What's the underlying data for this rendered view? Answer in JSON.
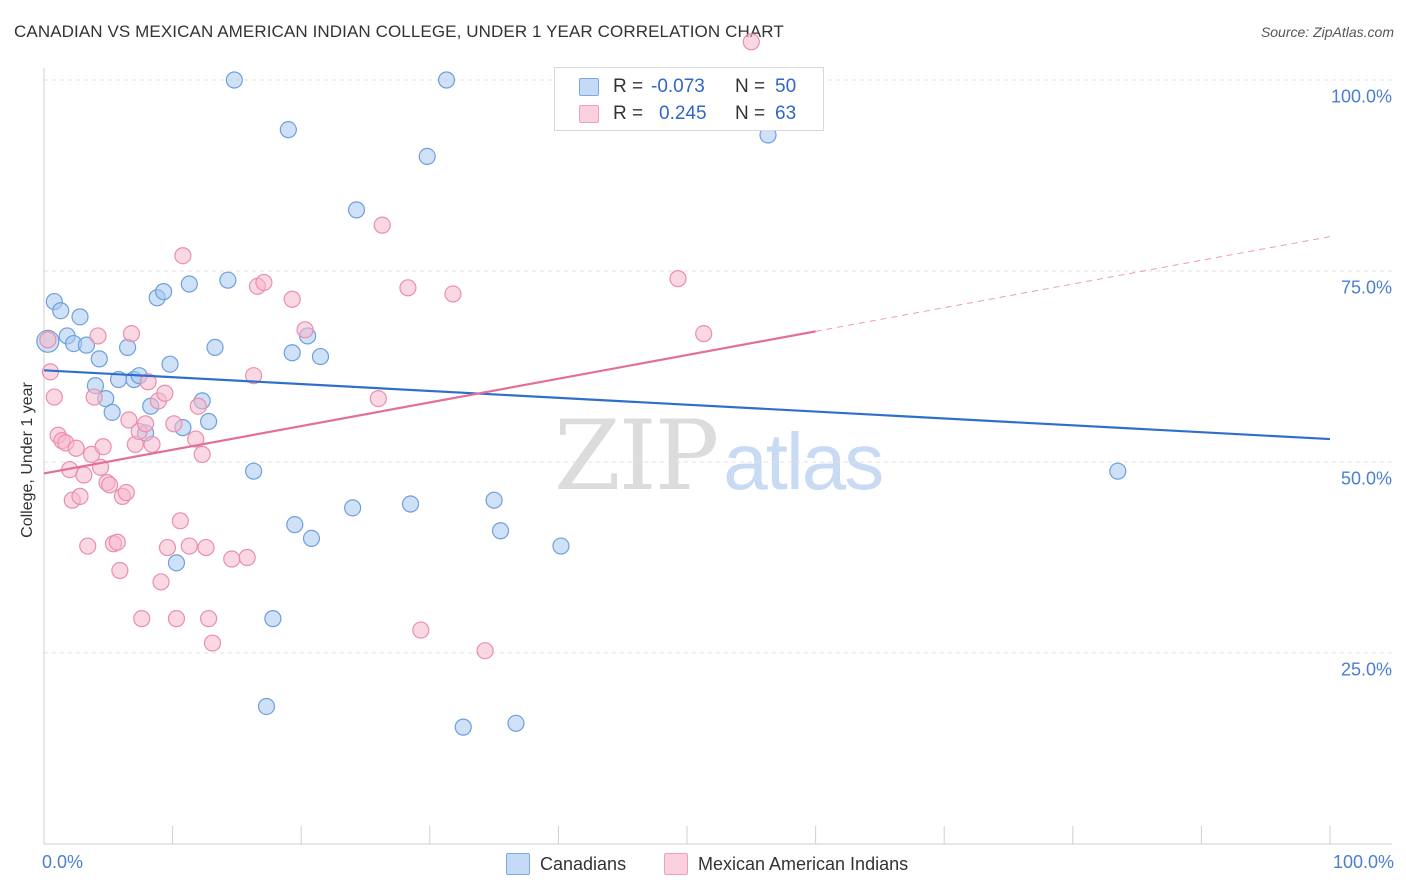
{
  "header": {
    "title": "CANADIAN VS MEXICAN AMERICAN INDIAN COLLEGE, UNDER 1 YEAR CORRELATION CHART",
    "source": "Source: ZipAtlas.com"
  },
  "watermark": {
    "zip": "ZIP",
    "atlas": "atlas"
  },
  "stats": {
    "rows": [
      {
        "r_label": "R =",
        "r_value": "-0.073",
        "n_label": "N =",
        "n_value": "50",
        "color": "#a8c8f0"
      },
      {
        "r_label": "R =",
        "r_value": "0.245",
        "n_label": "N =",
        "n_value": "63",
        "color": "#f5b8cc"
      }
    ]
  },
  "legend": {
    "items": [
      {
        "label": "Canadians",
        "color": "#a8c8f0"
      },
      {
        "label": "Mexican American Indians",
        "color": "#f5b8cc"
      }
    ]
  },
  "chart_data": {
    "type": "scatter",
    "title": "CANADIAN VS MEXICAN AMERICAN INDIAN COLLEGE, UNDER 1 YEAR CORRELATION CHART",
    "xlabel": "",
    "ylabel": "College, Under 1 year",
    "xlim": [
      0,
      100
    ],
    "ylim": [
      0,
      100
    ],
    "x_tick_labels": [
      "0.0%",
      "100.0%"
    ],
    "y_ticks": [
      25,
      50,
      75,
      100
    ],
    "y_tick_labels": [
      "25.0%",
      "50.0%",
      "75.0%",
      "100.0%"
    ],
    "grid": true,
    "legend_position": "bottom",
    "series": [
      {
        "name": "Canadians",
        "color": "#a8c8f0",
        "edge_color": "#6f9fdc",
        "trend_color": "#2f6fcc",
        "trend": {
          "x0": 0,
          "y0": 62.0,
          "x1": 100,
          "y1": 53.0,
          "dashed_from": null
        },
        "points": [
          [
            0.3,
            65.8
          ],
          [
            0.8,
            71.0
          ],
          [
            1.3,
            69.8
          ],
          [
            1.8,
            66.5
          ],
          [
            2.3,
            65.5
          ],
          [
            2.8,
            69.0
          ],
          [
            3.3,
            65.3
          ],
          [
            4.0,
            60.0
          ],
          [
            4.3,
            63.5
          ],
          [
            4.8,
            58.3
          ],
          [
            5.3,
            56.5
          ],
          [
            5.8,
            60.8
          ],
          [
            6.5,
            65.0
          ],
          [
            7.0,
            60.8
          ],
          [
            7.4,
            61.3
          ],
          [
            7.9,
            53.8
          ],
          [
            8.3,
            57.3
          ],
          [
            8.8,
            71.5
          ],
          [
            9.3,
            72.3
          ],
          [
            9.8,
            62.8
          ],
          [
            10.3,
            36.8
          ],
          [
            10.8,
            54.5
          ],
          [
            11.3,
            73.3
          ],
          [
            12.3,
            58.0
          ],
          [
            12.8,
            55.3
          ],
          [
            13.3,
            65.0
          ],
          [
            14.3,
            73.8
          ],
          [
            14.8,
            100.0
          ],
          [
            16.3,
            48.8
          ],
          [
            17.3,
            18.0
          ],
          [
            17.8,
            29.5
          ],
          [
            19.0,
            93.5
          ],
          [
            19.3,
            64.3
          ],
          [
            19.5,
            41.8
          ],
          [
            20.5,
            66.5
          ],
          [
            20.8,
            40.0
          ],
          [
            21.5,
            63.8
          ],
          [
            24.0,
            44.0
          ],
          [
            24.3,
            83.0
          ],
          [
            28.5,
            44.5
          ],
          [
            29.8,
            90.0
          ],
          [
            31.3,
            100.0
          ],
          [
            32.6,
            15.3
          ],
          [
            35.0,
            45.0
          ],
          [
            35.5,
            41.0
          ],
          [
            36.7,
            15.8
          ],
          [
            40.2,
            39.0
          ],
          [
            47.8,
            100.0
          ],
          [
            56.3,
            92.8
          ],
          [
            83.5,
            48.8
          ]
        ]
      },
      {
        "name": "Mexican American Indians",
        "color": "#f5b8cc",
        "edge_color": "#e98fae",
        "trend_color": "#e26f97",
        "trend": {
          "x0": 0,
          "y0": 48.5,
          "x1": 100,
          "y1": 79.5,
          "dashed_from": 60
        },
        "points": [
          [
            0.3,
            66.0
          ],
          [
            0.5,
            61.8
          ],
          [
            0.8,
            58.5
          ],
          [
            1.1,
            53.5
          ],
          [
            1.4,
            52.8
          ],
          [
            1.7,
            52.5
          ],
          [
            2.0,
            49.0
          ],
          [
            2.2,
            45.0
          ],
          [
            2.5,
            51.8
          ],
          [
            2.8,
            45.5
          ],
          [
            3.1,
            48.3
          ],
          [
            3.4,
            39.0
          ],
          [
            3.7,
            51.0
          ],
          [
            3.9,
            58.5
          ],
          [
            4.2,
            66.5
          ],
          [
            4.4,
            49.3
          ],
          [
            4.6,
            52.0
          ],
          [
            4.9,
            47.3
          ],
          [
            5.1,
            47.0
          ],
          [
            5.4,
            39.3
          ],
          [
            5.7,
            39.5
          ],
          [
            5.9,
            35.8
          ],
          [
            6.1,
            45.5
          ],
          [
            6.4,
            46.0
          ],
          [
            6.6,
            55.5
          ],
          [
            6.8,
            66.8
          ],
          [
            7.1,
            52.3
          ],
          [
            7.4,
            54.0
          ],
          [
            7.6,
            29.5
          ],
          [
            7.9,
            55.0
          ],
          [
            8.1,
            60.5
          ],
          [
            8.4,
            52.3
          ],
          [
            8.9,
            58.0
          ],
          [
            9.1,
            34.3
          ],
          [
            9.4,
            59.0
          ],
          [
            9.6,
            38.8
          ],
          [
            10.1,
            55.0
          ],
          [
            10.3,
            29.5
          ],
          [
            10.6,
            42.3
          ],
          [
            10.8,
            77.0
          ],
          [
            11.3,
            39.0
          ],
          [
            11.8,
            53.0
          ],
          [
            12.0,
            57.3
          ],
          [
            12.3,
            51.0
          ],
          [
            12.6,
            38.8
          ],
          [
            12.8,
            29.5
          ],
          [
            13.1,
            26.3
          ],
          [
            14.6,
            37.3
          ],
          [
            15.8,
            37.5
          ],
          [
            16.3,
            61.3
          ],
          [
            16.6,
            73.0
          ],
          [
            17.1,
            73.5
          ],
          [
            19.3,
            71.3
          ],
          [
            20.3,
            67.3
          ],
          [
            26.0,
            58.3
          ],
          [
            26.3,
            81.0
          ],
          [
            28.3,
            72.8
          ],
          [
            29.3,
            28.0
          ],
          [
            31.8,
            72.0
          ],
          [
            34.3,
            25.3
          ],
          [
            49.3,
            74.0
          ],
          [
            51.3,
            66.8
          ],
          [
            55.0,
            105.0
          ]
        ]
      }
    ]
  }
}
